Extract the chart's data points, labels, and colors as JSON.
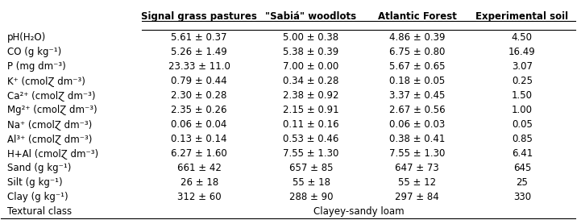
{
  "col_headers": [
    "Signal grass pastures",
    "\"Sabiá\" woodlots",
    "Atlantic Forest",
    "Experimental soil"
  ],
  "row_labels": [
    "pH(H₂O)",
    "CO (g kg⁻¹)",
    "P (mg dm⁻³)",
    "K⁺ (cmolⱿ dm⁻³)",
    "Ca²⁺ (cmolⱿ dm⁻³)",
    "Mg²⁺ (cmolⱿ dm⁻³)",
    "Na⁺ (cmolⱿ dm⁻³)",
    "Al³⁺ (cmolⱿ dm⁻³)",
    "H+Al (cmolⱿ dm⁻³)",
    "Sand (g kg⁻¹)",
    "Silt (g kg⁻¹)",
    "Clay (g kg⁻¹)",
    "Textural class"
  ],
  "cell_data": [
    [
      "5.61 ± 0.37",
      "5.00 ± 0.38",
      "4.86 ± 0.39",
      "4.50"
    ],
    [
      "5.26 ± 1.49",
      "5.38 ± 0.39",
      "6.75 ± 0.80",
      "16.49"
    ],
    [
      "23.33 ± 11.0",
      "7.00 ± 0.00",
      "5.67 ± 0.65",
      "3.07"
    ],
    [
      "0.79 ± 0.44",
      "0.34 ± 0.28",
      "0.18 ± 0.05",
      "0.25"
    ],
    [
      "2.30 ± 0.28",
      "2.38 ± 0.92",
      "3.37 ± 0.45",
      "1.50"
    ],
    [
      "2.35 ± 0.26",
      "2.15 ± 0.91",
      "2.67 ± 0.56",
      "1.00"
    ],
    [
      "0.06 ± 0.04",
      "0.11 ± 0.16",
      "0.06 ± 0.03",
      "0.05"
    ],
    [
      "0.13 ± 0.14",
      "0.53 ± 0.46",
      "0.38 ± 0.41",
      "0.85"
    ],
    [
      "6.27 ± 1.60",
      "7.55 ± 1.30",
      "7.55 ± 1.30",
      "6.41"
    ],
    [
      "661 ± 42",
      "657 ± 85",
      "647 ± 73",
      "645"
    ],
    [
      "26 ± 18",
      "55 ± 18",
      "55 ± 12",
      "25"
    ],
    [
      "312 ± 60",
      "288 ± 90",
      "297 ± 84",
      "330"
    ],
    [
      "",
      "Clayey-sandy loam",
      "",
      ""
    ]
  ],
  "bg_color": "white",
  "text_color": "black",
  "header_fontsize": 8.5,
  "cell_fontsize": 8.5,
  "row_label_fontsize": 8.5
}
